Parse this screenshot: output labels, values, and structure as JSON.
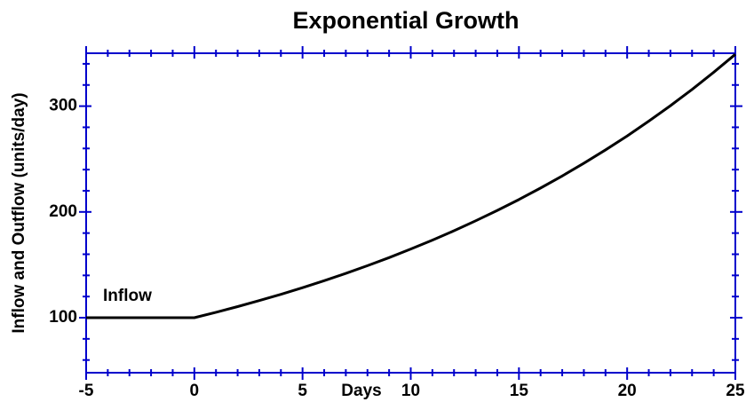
{
  "chart_data": {
    "type": "line",
    "title": "Exponential Growth",
    "x_label": "Days",
    "y_label": "Inflow and Outflow (units/day)",
    "annotation": "Inflow",
    "x": [
      -5,
      -4,
      -3,
      -2,
      -1,
      0,
      1,
      2,
      3,
      4,
      5,
      6,
      7,
      8,
      9,
      10,
      11,
      12,
      13,
      14,
      15,
      16,
      17,
      18,
      19,
      20,
      21,
      22,
      23,
      24,
      25
    ],
    "series": [
      {
        "name": "Inflow",
        "color": "#000000",
        "values": [
          100,
          100,
          100,
          100,
          100,
          100,
          105.1,
          110.5,
          116.2,
          122.1,
          128.4,
          135.0,
          141.9,
          149.2,
          156.8,
          164.9,
          173.3,
          182.2,
          191.6,
          201.4,
          211.7,
          222.6,
          234.0,
          246.0,
          258.6,
          271.8,
          285.8,
          300.4,
          315.8,
          332.0,
          349.0
        ]
      }
    ],
    "xlim": [
      -5,
      25
    ],
    "ylim": [
      48,
      350
    ],
    "xticks": [
      -5,
      0,
      5,
      10,
      15,
      20,
      25
    ],
    "yticks": [
      100,
      200,
      300
    ],
    "xminorticks": [
      -4,
      -3,
      -2,
      -1,
      1,
      2,
      3,
      4,
      6,
      7,
      8,
      9,
      11,
      12,
      13,
      14,
      16,
      17,
      18,
      19,
      21,
      22,
      23,
      24
    ],
    "yminorticks": [
      60,
      80,
      120,
      140,
      160,
      180,
      220,
      240,
      260,
      280,
      320,
      340
    ],
    "axis_color": "#0000cc"
  }
}
